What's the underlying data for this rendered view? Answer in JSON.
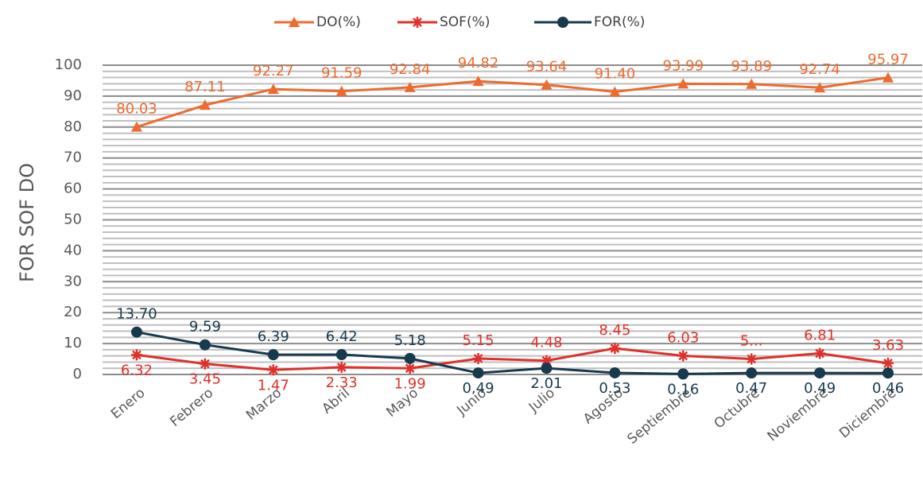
{
  "chart_data": {
    "type": "line",
    "ylabel": "FOR SOF DO",
    "categories": [
      "Enero",
      "Febrero",
      "Marzo",
      "Abril",
      "Mayo",
      "Junio",
      "Julio",
      "Agosto",
      "Septiembre",
      "Octubre",
      "Noviembre",
      "Diciembre"
    ],
    "series": [
      {
        "name": "DO(%)",
        "color": "#ed6b2e",
        "marker": "triangle",
        "values": [
          80.03,
          87.11,
          92.27,
          91.59,
          92.84,
          94.82,
          93.64,
          91.4,
          93.99,
          93.89,
          92.74,
          95.97
        ],
        "value_labels": [
          "80.03",
          "87.11",
          "92.27",
          "91.59",
          "92.84",
          "94.82",
          "93.64",
          "91.40",
          "93.99",
          "93.89",
          "92.74",
          "95.97"
        ]
      },
      {
        "name": "SOF(%)",
        "color": "#e0302a",
        "marker": "star",
        "values": [
          6.32,
          3.45,
          1.47,
          2.33,
          1.99,
          5.15,
          4.48,
          8.45,
          6.03,
          5.0,
          6.81,
          3.63
        ],
        "value_labels": [
          "6.32",
          "3.45",
          "1.47",
          "2.33",
          "1.99",
          "5.15",
          "4.48",
          "8.45",
          "6.03",
          "5...",
          "6.81",
          "3.63"
        ]
      },
      {
        "name": "FOR(%)",
        "color": "#173a4e",
        "marker": "circle",
        "values": [
          13.7,
          9.59,
          6.39,
          6.42,
          5.18,
          0.49,
          2.01,
          0.53,
          0.16,
          0.47,
          0.49,
          0.46
        ],
        "value_labels": [
          "13.70",
          "9.59",
          "6.39",
          "6.42",
          "5.18",
          "0.49",
          "2.01",
          "0.53",
          "0.16",
          "0.47",
          "0.49",
          "0.46"
        ]
      }
    ],
    "ylim": [
      0,
      100
    ],
    "yticks": [
      0,
      10,
      20,
      30,
      40,
      50,
      60,
      70,
      80,
      90,
      100
    ],
    "grid": true,
    "legend": "top"
  }
}
